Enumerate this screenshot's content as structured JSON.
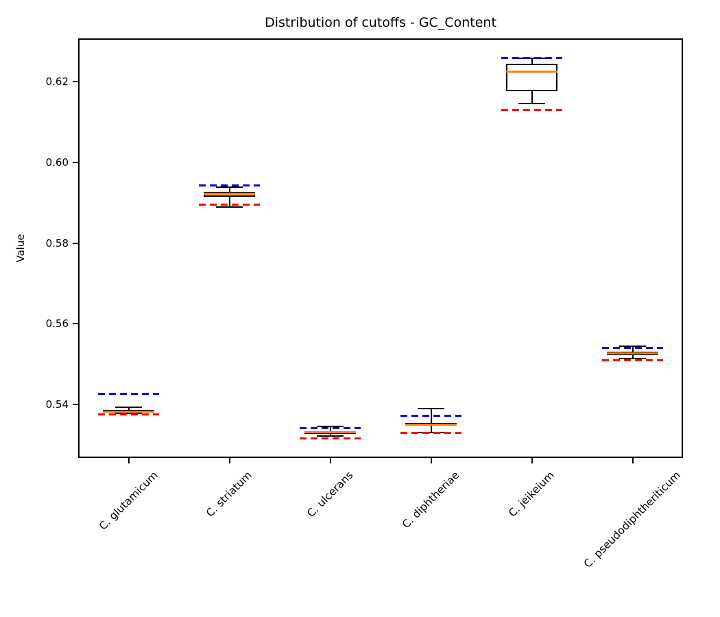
{
  "chart_data": {
    "type": "boxplot",
    "title": "Distribution of cutoffs - GC_Content",
    "xlabel": "",
    "ylabel": "Value",
    "ylim": [
      0.5268,
      0.6307
    ],
    "yticks": [
      0.54,
      0.56,
      0.58,
      0.6,
      0.62
    ],
    "grid": false,
    "legend_position": "none",
    "categories": [
      "C. glutamicum",
      "C. striatum",
      "C. ulcerans",
      "C. diphtheriae",
      "C. jeikeium",
      "C. pseudodiphtheriticum"
    ],
    "boxes": [
      {
        "label": "C. glutamicum",
        "whislo": 0.5378,
        "q1": 0.538,
        "med": 0.5383,
        "q3": 0.5386,
        "whishi": 0.5393,
        "upper_cutoff": 0.5427,
        "lower_cutoff": 0.5375
      },
      {
        "label": "C. striatum",
        "whislo": 0.5889,
        "q1": 0.5914,
        "med": 0.5923,
        "q3": 0.5927,
        "whishi": 0.5939,
        "upper_cutoff": 0.5942,
        "lower_cutoff": 0.5895
      },
      {
        "label": "C. ulcerans",
        "whislo": 0.5323,
        "q1": 0.5328,
        "med": 0.5332,
        "q3": 0.5335,
        "whishi": 0.5346,
        "upper_cutoff": 0.5342,
        "lower_cutoff": 0.5316
      },
      {
        "label": "C. diphtheriae",
        "whislo": 0.5331,
        "q1": 0.5347,
        "med": 0.5351,
        "q3": 0.5355,
        "whishi": 0.539,
        "upper_cutoff": 0.5373,
        "lower_cutoff": 0.533
      },
      {
        "label": "C. jeikeium",
        "whislo": 0.6146,
        "q1": 0.6177,
        "med": 0.6225,
        "q3": 0.6245,
        "whishi": 0.6258,
        "upper_cutoff": 0.6259,
        "lower_cutoff": 0.613
      },
      {
        "label": "C. pseudodiphtheriticum",
        "whislo": 0.5514,
        "q1": 0.5523,
        "med": 0.5527,
        "q3": 0.5531,
        "whishi": 0.5544,
        "upper_cutoff": 0.5541,
        "lower_cutoff": 0.551
      }
    ],
    "colors": {
      "box_edge": "#000000",
      "box_fill": "#ffffff",
      "median": "#ff7f0e",
      "whisker": "#000000",
      "upper_cutoff": "#0000ff",
      "lower_cutoff": "#ff0000",
      "spine": "#000000",
      "text": "#000000"
    },
    "layout_hints": {
      "box_width_frac": 0.51,
      "cap_width_frac": 0.26,
      "cutoff_width_frac": 0.6,
      "upper_cutoff_style": "dashed",
      "lower_cutoff_style": "dashed"
    }
  }
}
